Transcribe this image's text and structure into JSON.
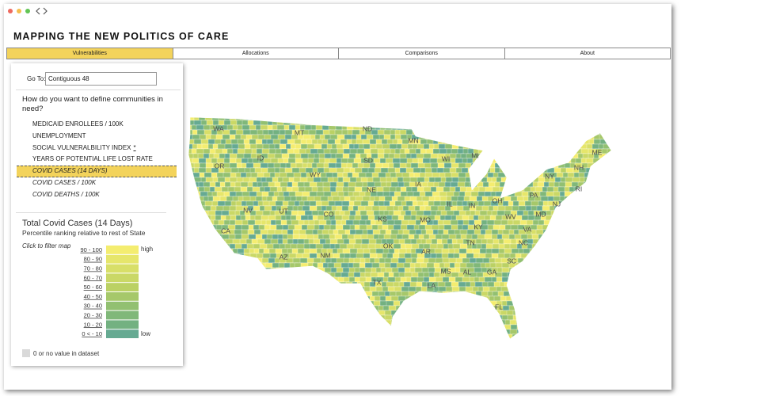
{
  "header": {
    "title": "MAPPING THE NEW POLITICS OF CARE"
  },
  "tabs": [
    {
      "label": "Vulnerabilities",
      "active": true
    },
    {
      "label": "Allocations",
      "active": false
    },
    {
      "label": "Comparisons",
      "active": false
    },
    {
      "label": "About",
      "active": false
    }
  ],
  "sidebar": {
    "goto_label": "Go To:",
    "goto_value": "Contiguous 48",
    "question": "How do you want to define communities in need?",
    "measures": [
      {
        "label": "MEDICAID ENROLLEES / 100K",
        "italic": false,
        "selected": false
      },
      {
        "label": "UNEMPLOYMENT",
        "italic": false,
        "selected": false
      },
      {
        "label": "SOCIAL VULNERALBILITY INDEX",
        "note": "*",
        "italic": false,
        "selected": false
      },
      {
        "label": "YEARS OF POTENTIAL LIFE LOST RATE",
        "italic": false,
        "selected": false
      },
      {
        "label": "COVID CASES (14 DAYS)",
        "italic": true,
        "selected": true
      },
      {
        "label": "COVID CASES / 100K",
        "italic": true,
        "selected": false
      },
      {
        "label": "COVID DEATHS / 100K",
        "italic": true,
        "selected": false
      }
    ]
  },
  "legend": {
    "title": "Total Covid Cases (14 Days)",
    "subtitle": "Percentile ranking relative to rest of State",
    "hint": "Click to filter map",
    "high": "high",
    "low": "low",
    "bins": [
      {
        "label": "90 - 100",
        "color": "#f4ed70"
      },
      {
        "label": "80 - 90",
        "color": "#e6e66b"
      },
      {
        "label": "70 - 80",
        "color": "#d8df68"
      },
      {
        "label": "60 - 70",
        "color": "#cad866"
      },
      {
        "label": "50 - 60",
        "color": "#bbd164"
      },
      {
        "label": "40 - 50",
        "color": "#a6c86a"
      },
      {
        "label": "30 - 40",
        "color": "#92c071"
      },
      {
        "label": "20 - 30",
        "color": "#80b879"
      },
      {
        "label": "10 - 20",
        "color": "#73b181"
      },
      {
        "label": "0 < - 10",
        "color": "#66aa92"
      }
    ],
    "no_value": {
      "label": "0 or no value in dataset",
      "color": "#d9d9d9"
    }
  },
  "map": {
    "states": [
      "WA",
      "OR",
      "CA",
      "NV",
      "ID",
      "MT",
      "WY",
      "UT",
      "AZ",
      "CO",
      "NM",
      "ND",
      "SD",
      "NE",
      "KS",
      "OK",
      "TX",
      "MN",
      "IA",
      "MO",
      "AR",
      "LA",
      "WI",
      "IL",
      "MS",
      "AL",
      "TN",
      "KY",
      "IN",
      "MI",
      "OH",
      "GA",
      "FL",
      "SC",
      "NC",
      "VA",
      "WV",
      "PA",
      "NY",
      "ME",
      "NH",
      "RI",
      "NJ",
      "MD"
    ]
  }
}
